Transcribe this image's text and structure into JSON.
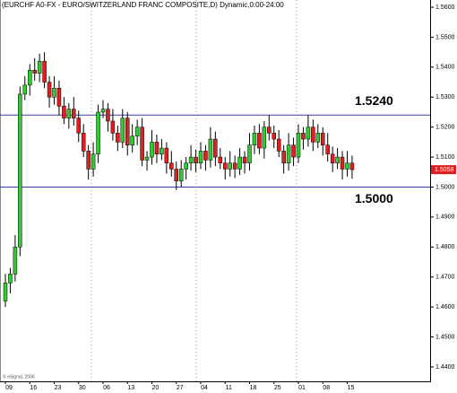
{
  "chart_data": {
    "type": "candlestick",
    "title": "(EURCHF A0-FX - EURO/SWITZERLAND FRANC COMPOSITE,D) Dynamic,0:00-24:00",
    "footer": "© eSignal, 2006",
    "categories": [
      "09",
      null,
      null,
      null,
      null,
      "16",
      null,
      null,
      null,
      null,
      "23",
      null,
      null,
      null,
      null,
      "30",
      null,
      null,
      null,
      null,
      "06",
      null,
      null,
      null,
      null,
      "13",
      null,
      null,
      null,
      null,
      "20",
      null,
      null,
      null,
      null,
      "27",
      null,
      null,
      null,
      null,
      "04",
      null,
      null,
      null,
      null,
      "11",
      null,
      null,
      null,
      null,
      "18",
      null,
      null,
      null,
      null,
      "25",
      null,
      null,
      null,
      null,
      "01",
      null,
      null,
      null,
      null,
      "08",
      null,
      null,
      null,
      null,
      "15",
      null
    ],
    "open": [
      1.462,
      1.468,
      1.471,
      1.48,
      1.531,
      1.534,
      1.539,
      1.538,
      1.542,
      1.535,
      1.53,
      1.533,
      1.527,
      1.523,
      1.526,
      1.523,
      1.518,
      1.512,
      1.506,
      1.511,
      1.525,
      1.526,
      1.522,
      1.518,
      1.515,
      1.523,
      1.514,
      1.517,
      1.52,
      1.509,
      1.51,
      1.515,
      1.511,
      1.513,
      1.508,
      1.506,
      1.502,
      1.506,
      1.508,
      1.51,
      1.508,
      1.512,
      1.509,
      1.516,
      1.51,
      1.508,
      1.506,
      1.508,
      1.506,
      1.51,
      1.508,
      1.514,
      1.518,
      1.513,
      1.52,
      1.518,
      1.516,
      1.512,
      1.508,
      1.514,
      1.51,
      1.518,
      1.516,
      1.52,
      1.515,
      1.518,
      1.514,
      1.511,
      1.508,
      1.51,
      1.506,
      1.508
    ],
    "high": [
      1.471,
      1.473,
      1.484,
      1.5335,
      1.537,
      1.541,
      1.543,
      1.5445,
      1.545,
      1.537,
      1.537,
      1.5355,
      1.53,
      1.528,
      1.53,
      1.5255,
      1.521,
      1.514,
      1.515,
      1.5275,
      1.529,
      1.528,
      1.526,
      1.5205,
      1.526,
      1.525,
      1.521,
      1.5225,
      1.523,
      1.512,
      1.519,
      1.5175,
      1.516,
      1.515,
      1.512,
      1.5085,
      1.509,
      1.51,
      1.514,
      1.5125,
      1.515,
      1.514,
      1.52,
      1.5185,
      1.513,
      1.51,
      1.512,
      1.5105,
      1.513,
      1.512,
      1.518,
      1.5205,
      1.521,
      1.522,
      1.524,
      1.5205,
      1.519,
      1.514,
      1.518,
      1.5165,
      1.521,
      1.52,
      1.524,
      1.5225,
      1.521,
      1.52,
      1.518,
      1.5135,
      1.513,
      1.512,
      1.512,
      1.5105
    ],
    "low": [
      1.46,
      1.4645,
      1.4685,
      1.477,
      1.529,
      1.5305,
      1.5355,
      1.535,
      1.533,
      1.5265,
      1.5275,
      1.524,
      1.521,
      1.5195,
      1.5205,
      1.515,
      1.51,
      1.5025,
      1.5035,
      1.508,
      1.523,
      1.5185,
      1.5155,
      1.512,
      1.513,
      1.5105,
      1.5115,
      1.514,
      1.507,
      1.5055,
      1.5075,
      1.508,
      1.509,
      1.5045,
      1.5035,
      1.499,
      1.5,
      1.5025,
      1.5055,
      1.505,
      1.506,
      1.5055,
      1.5065,
      1.507,
      1.506,
      1.5025,
      1.5035,
      1.503,
      1.504,
      1.5045,
      1.5055,
      1.511,
      1.511,
      1.5095,
      1.5155,
      1.513,
      1.51,
      1.5045,
      1.5055,
      1.507,
      1.508,
      1.5125,
      1.5135,
      1.512,
      1.513,
      1.5105,
      1.5085,
      1.505,
      1.506,
      1.5025,
      1.5035,
      1.5028
    ],
    "close": [
      1.468,
      1.471,
      1.48,
      1.531,
      1.534,
      1.539,
      1.538,
      1.542,
      1.535,
      1.53,
      1.533,
      1.527,
      1.523,
      1.526,
      1.523,
      1.518,
      1.512,
      1.506,
      1.511,
      1.525,
      1.526,
      1.522,
      1.518,
      1.515,
      1.523,
      1.514,
      1.517,
      1.52,
      1.509,
      1.51,
      1.515,
      1.511,
      1.513,
      1.508,
      1.506,
      1.502,
      1.506,
      1.508,
      1.51,
      1.508,
      1.512,
      1.509,
      1.516,
      1.51,
      1.508,
      1.506,
      1.508,
      1.506,
      1.51,
      1.508,
      1.514,
      1.518,
      1.513,
      1.52,
      1.518,
      1.516,
      1.512,
      1.508,
      1.514,
      1.51,
      1.518,
      1.516,
      1.52,
      1.515,
      1.518,
      1.514,
      1.511,
      1.508,
      1.51,
      1.506,
      1.508,
      1.5058
    ],
    "up_color": "#2fcc2f",
    "down_color": "#dd2020",
    "ylim": [
      1.4352,
      1.5624
    ],
    "yticks": [
      {
        "value": 1.44,
        "label": "1.4400"
      },
      {
        "value": 1.45,
        "label": "1.4500"
      },
      {
        "value": 1.46,
        "label": "1.4600"
      },
      {
        "value": 1.47,
        "label": "1.4700"
      },
      {
        "value": 1.48,
        "label": "1.4800"
      },
      {
        "value": 1.49,
        "label": "1.4900"
      },
      {
        "value": 1.5,
        "label": "1.5000"
      },
      {
        "value": 1.51,
        "label": "1.5100"
      },
      {
        "value": 1.52,
        "label": "1.5200"
      },
      {
        "value": 1.53,
        "label": "1.5300"
      },
      {
        "value": 1.54,
        "label": "1.5400"
      },
      {
        "value": 1.55,
        "label": "1.5500"
      },
      {
        "value": 1.56,
        "label": "1.5600"
      }
    ],
    "hlines": [
      {
        "value": 1.524,
        "label": "1.5240"
      },
      {
        "value": 1.5,
        "label": "1.5000"
      }
    ],
    "hline_color": "#3838a8",
    "last_price": {
      "value": 1.5058,
      "label": "1.5058"
    }
  }
}
